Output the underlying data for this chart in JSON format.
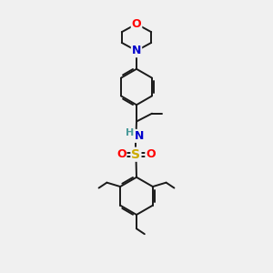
{
  "background_color": "#f0f0f0",
  "bond_color": "#1a1a1a",
  "atom_colors": {
    "O": "#ff0000",
    "N": "#0000cc",
    "S": "#ccaa00",
    "H": "#4a9a9a",
    "C": "#1a1a1a"
  },
  "font_size_atoms": 8.5,
  "lw": 1.4
}
